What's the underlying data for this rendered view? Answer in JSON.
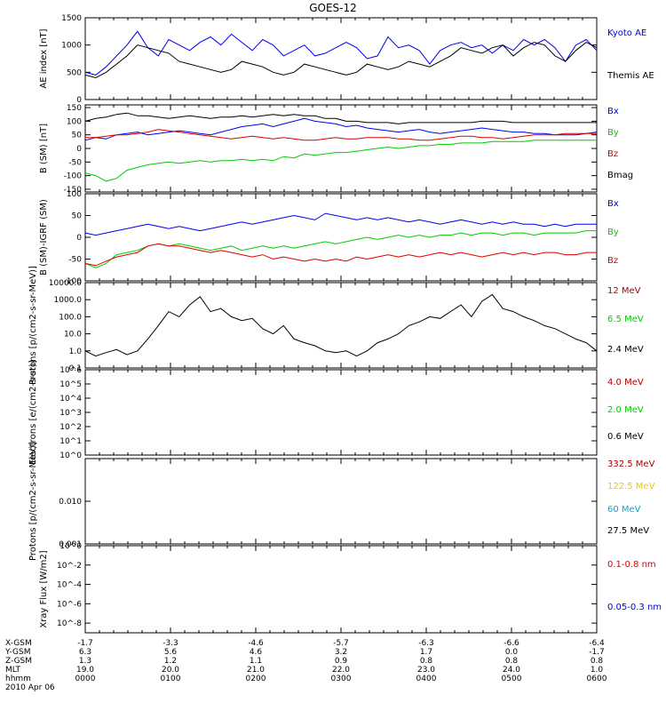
{
  "title": "GOES-12",
  "colors": {
    "black": "#000000",
    "blue": "#0000ee",
    "red": "#dd0000",
    "green": "#00cc00",
    "darkred": "#aa0000",
    "yellow": "#f0c800",
    "cyan": "#00a8e8"
  },
  "xaxis": {
    "ticks": [
      "0000",
      "0100",
      "0200",
      "0300",
      "0400",
      "0500",
      "0600"
    ],
    "rows": [
      {
        "label": "X-GSM",
        "values": [
          "-1.7",
          "-3.3",
          "-4.6",
          "-5.7",
          "-6.3",
          "-6.6",
          "-6.4"
        ]
      },
      {
        "label": "Y-GSM",
        "values": [
          "6.3",
          "5.6",
          "4.6",
          "3.2",
          "1.7",
          "0.0",
          "-1.7"
        ]
      },
      {
        "label": "Z-GSM",
        "values": [
          "1.3",
          "1.2",
          "1.1",
          "0.9",
          "0.8",
          "0.8",
          "0.8"
        ]
      },
      {
        "label": "MLT",
        "values": [
          "19.0",
          "20.0",
          "21.0",
          "22.0",
          "23.0",
          "24.0",
          "1.0"
        ]
      },
      {
        "label": "hhmm",
        "values": [
          "0000",
          "0100",
          "0200",
          "0300",
          "0400",
          "0500",
          "0600"
        ]
      }
    ],
    "date": "2010 Apr 06"
  },
  "chart_data": [
    {
      "type": "line",
      "ylabel": "AE index [nT]",
      "ylim": [
        0,
        1500
      ],
      "yticks": [
        "0",
        "500",
        "1000",
        "1500"
      ],
      "yvals": [
        0,
        500,
        1000,
        1500
      ],
      "log": false,
      "series": [
        {
          "name": "Kyoto AE",
          "color": "blue",
          "values": [
            500,
            450,
            600,
            800,
            1000,
            1250,
            950,
            800,
            1100,
            1000,
            900,
            1050,
            1150,
            1000,
            1200,
            1050,
            900,
            1100,
            1000,
            800,
            900,
            1000,
            800,
            850,
            950,
            1050,
            950,
            750,
            800,
            1150,
            950,
            1000,
            900,
            650,
            900,
            1000,
            1050,
            950,
            1000,
            850,
            1000,
            900,
            1100,
            1000,
            1100,
            950,
            700,
            1000,
            1100,
            900
          ]
        },
        {
          "name": "Themis AE",
          "color": "black",
          "values": [
            450,
            400,
            500,
            650,
            800,
            1000,
            950,
            900,
            850,
            700,
            650,
            600,
            550,
            500,
            550,
            700,
            650,
            600,
            500,
            450,
            500,
            650,
            600,
            550,
            500,
            450,
            500,
            650,
            600,
            550,
            600,
            700,
            650,
            600,
            700,
            800,
            950,
            900,
            850,
            950,
            1000,
            800,
            950,
            1050,
            1000,
            800,
            700,
            900,
            1050,
            950
          ]
        }
      ]
    },
    {
      "type": "line",
      "ylabel": "B (SM) [nT]",
      "ylim": [
        -160,
        160
      ],
      "yticks": [
        "-150",
        "-100",
        "-50",
        "0",
        "50",
        "100",
        "150"
      ],
      "yvals": [
        -150,
        -100,
        -50,
        0,
        50,
        100,
        150
      ],
      "log": false,
      "series": [
        {
          "name": "Bx",
          "color": "blue",
          "values": [
            30,
            40,
            35,
            50,
            55,
            60,
            50,
            55,
            60,
            65,
            60,
            55,
            50,
            60,
            70,
            80,
            85,
            90,
            80,
            90,
            100,
            110,
            100,
            95,
            90,
            80,
            85,
            75,
            70,
            65,
            60,
            65,
            70,
            60,
            55,
            60,
            65,
            70,
            75,
            70,
            65,
            60,
            60,
            55,
            55,
            50,
            50,
            50,
            55,
            60
          ]
        },
        {
          "name": "By",
          "color": "green",
          "values": [
            -90,
            -100,
            -120,
            -110,
            -80,
            -70,
            -60,
            -55,
            -50,
            -55,
            -50,
            -45,
            -50,
            -45,
            -45,
            -40,
            -45,
            -40,
            -45,
            -30,
            -35,
            -20,
            -25,
            -20,
            -15,
            -15,
            -10,
            -5,
            0,
            5,
            0,
            5,
            10,
            10,
            15,
            15,
            20,
            20,
            20,
            25,
            25,
            25,
            25,
            30,
            30,
            30,
            30,
            30,
            30,
            30
          ]
        },
        {
          "name": "Bz",
          "color": "red",
          "values": [
            40,
            40,
            45,
            50,
            50,
            55,
            60,
            70,
            65,
            60,
            55,
            50,
            45,
            40,
            35,
            40,
            45,
            40,
            35,
            40,
            35,
            30,
            30,
            35,
            40,
            35,
            35,
            40,
            40,
            40,
            35,
            35,
            30,
            30,
            35,
            40,
            45,
            45,
            40,
            40,
            35,
            40,
            45,
            50,
            50,
            50,
            55,
            55,
            55,
            55
          ]
        },
        {
          "name": "Bmag",
          "color": "black",
          "values": [
            100,
            110,
            115,
            125,
            130,
            120,
            120,
            115,
            110,
            115,
            120,
            115,
            110,
            115,
            115,
            120,
            115,
            120,
            125,
            120,
            125,
            120,
            120,
            110,
            110,
            100,
            100,
            95,
            95,
            95,
            90,
            95,
            95,
            95,
            95,
            95,
            95,
            95,
            100,
            100,
            100,
            95,
            95,
            95,
            95,
            95,
            95,
            95,
            95,
            95
          ]
        }
      ]
    },
    {
      "type": "line",
      "ylabel": "B (SM)-IGRF (SM)",
      "ylim": [
        -100,
        100
      ],
      "yticks": [
        "-100",
        "-50",
        "0",
        "50",
        "100"
      ],
      "yvals": [
        -100,
        -50,
        0,
        50,
        100
      ],
      "log": false,
      "series": [
        {
          "name": "Bx",
          "color": "blue",
          "values": [
            10,
            5,
            10,
            15,
            20,
            25,
            30,
            25,
            20,
            25,
            20,
            15,
            20,
            25,
            30,
            35,
            30,
            35,
            40,
            45,
            50,
            45,
            40,
            55,
            50,
            45,
            40,
            45,
            40,
            45,
            40,
            35,
            40,
            35,
            30,
            35,
            40,
            35,
            30,
            35,
            30,
            35,
            30,
            30,
            25,
            30,
            25,
            30,
            30,
            30
          ]
        },
        {
          "name": "By",
          "color": "green",
          "values": [
            -60,
            -70,
            -60,
            -40,
            -35,
            -30,
            -20,
            -15,
            -20,
            -15,
            -20,
            -25,
            -30,
            -25,
            -20,
            -30,
            -25,
            -20,
            -25,
            -20,
            -25,
            -20,
            -15,
            -10,
            -15,
            -10,
            -5,
            0,
            -5,
            0,
            5,
            0,
            5,
            0,
            5,
            5,
            10,
            5,
            10,
            10,
            5,
            10,
            10,
            5,
            10,
            10,
            10,
            10,
            15,
            15
          ]
        },
        {
          "name": "Bz",
          "color": "red",
          "values": [
            -60,
            -65,
            -55,
            -45,
            -40,
            -35,
            -20,
            -15,
            -20,
            -20,
            -25,
            -30,
            -35,
            -30,
            -35,
            -40,
            -45,
            -40,
            -50,
            -45,
            -50,
            -55,
            -50,
            -55,
            -50,
            -55,
            -45,
            -50,
            -45,
            -40,
            -45,
            -40,
            -45,
            -40,
            -35,
            -40,
            -35,
            -40,
            -45,
            -40,
            -35,
            -40,
            -35,
            -40,
            -35,
            -35,
            -40,
            -40,
            -35,
            -35
          ]
        }
      ]
    },
    {
      "type": "line",
      "ylabel": "Protons [p/(cm2-s-sr-MeV)]",
      "log": true,
      "ylim": [
        0.1,
        10000
      ],
      "yticks": [
        "0.1",
        "1.0",
        "10.0",
        "100.0",
        "1000.0",
        "10000.0"
      ],
      "yvals": [
        0.1,
        1,
        10,
        100,
        1000,
        10000
      ],
      "series": [
        {
          "name": "12 MeV",
          "color": "darkred",
          "values": []
        },
        {
          "name": "6.5 MeV",
          "color": "green",
          "values": []
        },
        {
          "name": "2.4 MeV",
          "color": "black",
          "values": [
            1,
            0.5,
            0.8,
            1.2,
            0.6,
            1,
            5,
            30,
            200,
            100,
            500,
            1500,
            200,
            300,
            100,
            60,
            80,
            20,
            10,
            30,
            5,
            3,
            2,
            1,
            0.8,
            1,
            0.5,
            1,
            3,
            5,
            10,
            30,
            50,
            100,
            80,
            200,
            500,
            100,
            800,
            2000,
            300,
            200,
            100,
            60,
            30,
            20,
            10,
            5,
            3,
            1
          ]
        }
      ]
    },
    {
      "type": "line",
      "ylabel": "Electrons [e/(cm2-s-sr)]",
      "log": true,
      "ylim": [
        1,
        1000000
      ],
      "yticks": [
        "10^0",
        "10^1",
        "10^2",
        "10^3",
        "10^4",
        "10^5",
        "10^6"
      ],
      "yvals": [
        1,
        10,
        100,
        1000,
        10000,
        100000,
        1000000
      ],
      "series": [
        {
          "name": "4.0 MeV",
          "color": "darkred",
          "values": []
        },
        {
          "name": "2.0 MeV",
          "color": "green",
          "values": []
        },
        {
          "name": "0.6 MeV",
          "color": "black",
          "values": []
        }
      ]
    },
    {
      "type": "line",
      "ylabel": "Protons [p/(cm2-s-sr-MeV)]",
      "log": true,
      "ylim": [
        0.001,
        0.1
      ],
      "yticks": [
        "0.001",
        "0.010"
      ],
      "yvals": [
        0.001,
        0.01
      ],
      "series": [
        {
          "name": "332.5 MeV",
          "color": "darkred",
          "values": []
        },
        {
          "name": "122.5 MeV",
          "color": "yellow",
          "values": []
        },
        {
          "name": "60 MeV",
          "color": "cyan",
          "values": []
        },
        {
          "name": "27.5 MeV",
          "color": "black",
          "values": []
        }
      ]
    },
    {
      "type": "line",
      "ylabel": "Xray Flux [W/m2]",
      "log": true,
      "ylim": [
        1e-09,
        1
      ],
      "yticks": [
        "10^-8",
        "10^-6",
        "10^-4",
        "10^-2",
        "10^0"
      ],
      "yvals": [
        1e-08,
        1e-06,
        0.0001,
        0.01,
        1
      ],
      "series": [
        {
          "name": "0.1-0.8 nm",
          "color": "red",
          "values": []
        },
        {
          "name": "0.05-0.3 nm",
          "color": "blue",
          "values": []
        }
      ]
    }
  ]
}
